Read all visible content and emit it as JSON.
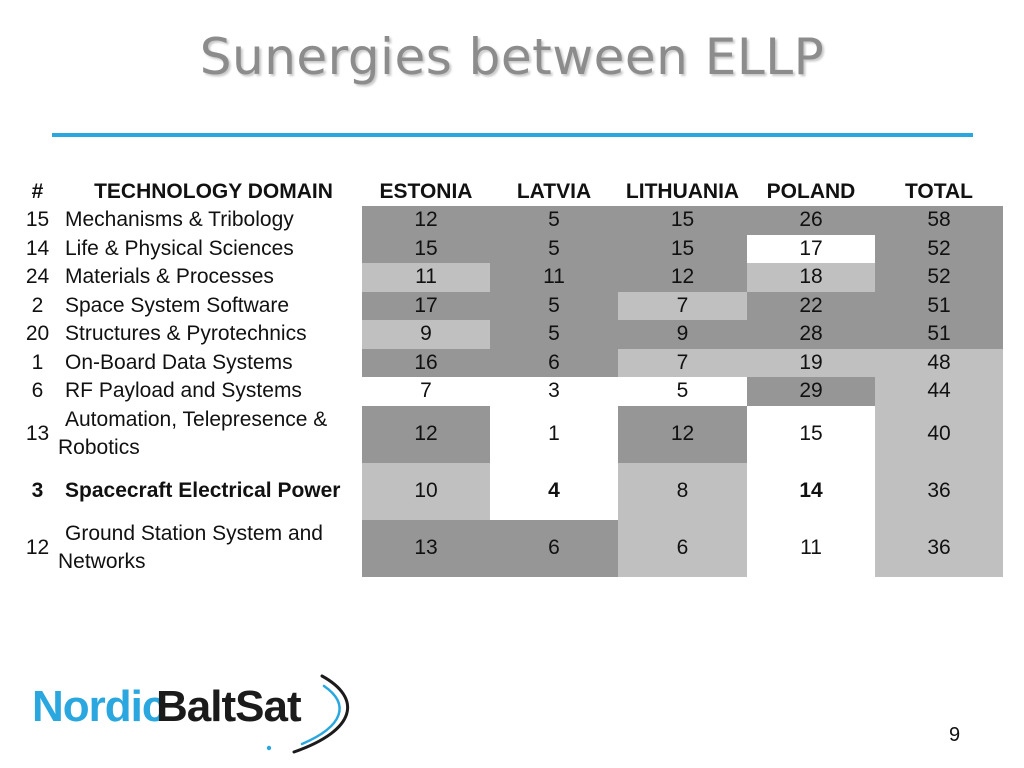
{
  "slide": {
    "title": "Sunergies  between ELLP",
    "page_number": "9"
  },
  "table": {
    "headers": [
      "#",
      "TECHNOLOGY DOMAIN",
      "ESTONIA",
      "LATVIA",
      "LITHUANIA",
      "POLAND",
      "TOTAL"
    ],
    "rows": [
      {
        "num": "15",
        "domain": "Mechanisms & Tribology",
        "estonia": "12",
        "latvia": "5",
        "lithuania": "15",
        "poland": "26",
        "total": "58"
      },
      {
        "num": "14",
        "domain": "Life & Physical Sciences",
        "estonia": "15",
        "latvia": "5",
        "lithuania": "15",
        "poland": "17",
        "total": "52"
      },
      {
        "num": "24",
        "domain": "Materials & Processes",
        "estonia": "11",
        "latvia": "11",
        "lithuania": "12",
        "poland": "18",
        "total": "52"
      },
      {
        "num": "2",
        "domain": "Space System Software",
        "estonia": "17",
        "latvia": "5",
        "lithuania": "7",
        "poland": "22",
        "total": "51"
      },
      {
        "num": "20",
        "domain": "Structures & Pyrotechnics",
        "estonia": "9",
        "latvia": "5",
        "lithuania": "9",
        "poland": "28",
        "total": "51"
      },
      {
        "num": "1",
        "domain": "On-Board Data Systems",
        "estonia": "16",
        "latvia": "6",
        "lithuania": "7",
        "poland": "19",
        "total": "48"
      },
      {
        "num": "6",
        "domain": "RF Payload and Systems",
        "estonia": "7",
        "latvia": "3",
        "lithuania": "5",
        "poland": "29",
        "total": "44"
      },
      {
        "num": "13",
        "domain_line1": "Automation, Telepresence &",
        "domain_line2": "Robotics",
        "estonia": "12",
        "latvia": "1",
        "lithuania": "12",
        "poland": "15",
        "total": "40"
      },
      {
        "num": "3",
        "domain": "Spacecraft Electrical Power",
        "estonia": "10",
        "latvia": "4",
        "lithuania": "8",
        "poland": "14",
        "total": "36"
      },
      {
        "num": "12",
        "domain_line1": "Ground Station System and",
        "domain_line2": "Networks",
        "estonia": "13",
        "latvia": "6",
        "lithuania": "6",
        "poland": "11",
        "total": "36"
      }
    ]
  },
  "logo": {
    "part1": "Nordic",
    "part2": "BaltSat"
  },
  "colors": {
    "title_gray": "#8c8c8c",
    "rule_blue": "#2aa7df",
    "cell_dark": "#969696",
    "cell_light": "#c0c0c0",
    "logo_blue": "#2aa7df"
  }
}
